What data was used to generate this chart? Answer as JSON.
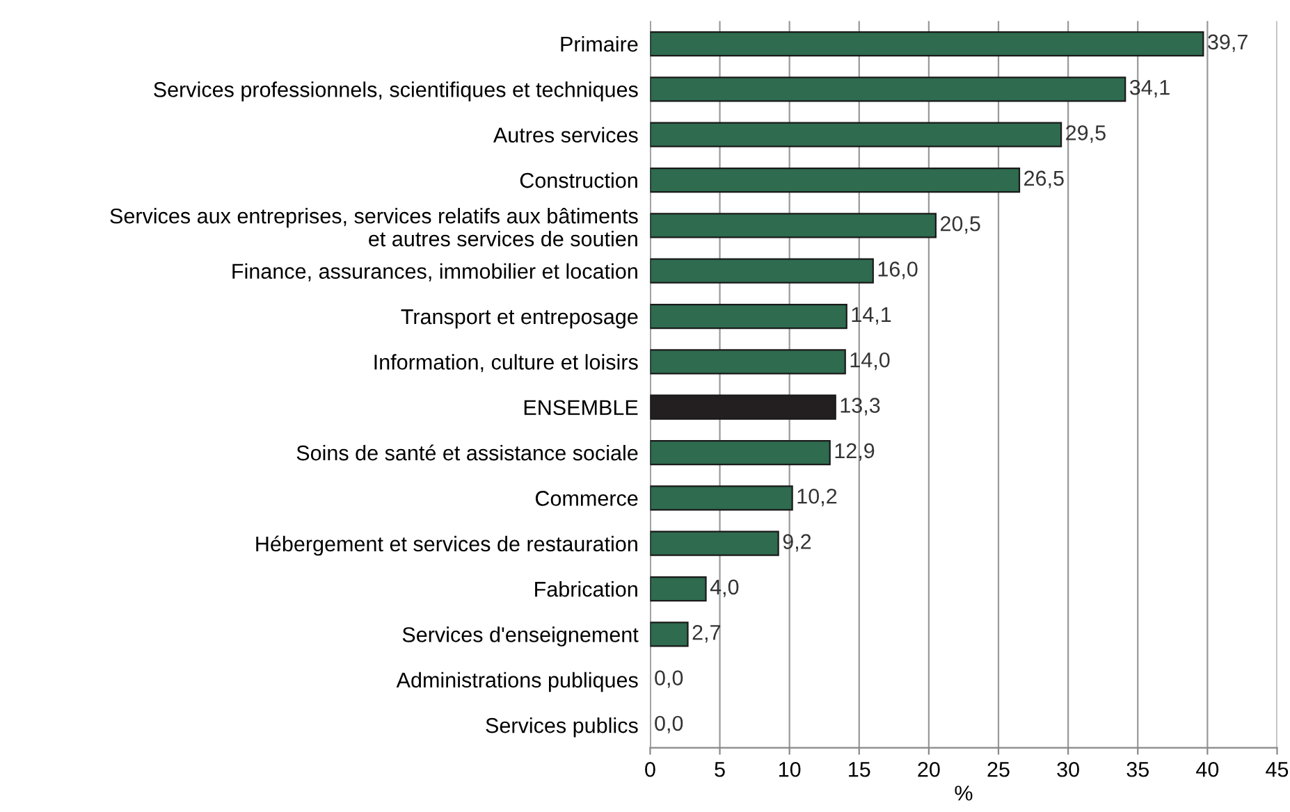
{
  "chart_data": {
    "type": "bar",
    "orientation": "horizontal",
    "xlabel": "%",
    "categories": [
      "Primaire",
      "Services professionnels, scientifiques et techniques",
      "Autres services",
      "Construction",
      "Services aux entreprises, services relatifs aux bâtiments\net autres services de soutien",
      "Finance, assurances, immobilier et location",
      "Transport et entreposage",
      "Information, culture et loisirs",
      "ENSEMBLE",
      "Soins de santé et assistance sociale",
      "Commerce",
      "Hébergement et services de restauration",
      "Fabrication",
      "Services d'enseignement",
      "Administrations publiques",
      "Services publics"
    ],
    "values": [
      39.7,
      34.1,
      29.5,
      26.5,
      20.5,
      16.0,
      14.1,
      14.0,
      13.3,
      12.9,
      10.2,
      9.2,
      4.0,
      2.7,
      0.0,
      0.0
    ],
    "colors": [
      "#2e6b4f",
      "#2e6b4f",
      "#2e6b4f",
      "#2e6b4f",
      "#2e6b4f",
      "#2e6b4f",
      "#2e6b4f",
      "#2e6b4f",
      "#231f20",
      "#2e6b4f",
      "#2e6b4f",
      "#2e6b4f",
      "#2e6b4f",
      "#2e6b4f",
      "#2e6b4f",
      "#2e6b4f"
    ],
    "value_labels": [
      "39,7",
      "34,1",
      "29,5",
      "26,5",
      "20,5",
      "16,0",
      "14,1",
      "14,0",
      "13,3",
      "12,9",
      "10,2",
      "9,2",
      "4,0",
      "2,7",
      "0,0",
      "0,0"
    ],
    "xlim": [
      0,
      45
    ],
    "xticks": [
      0,
      5,
      10,
      15,
      20,
      25,
      30,
      35,
      40,
      45
    ],
    "grid": "x",
    "legend": false
  }
}
